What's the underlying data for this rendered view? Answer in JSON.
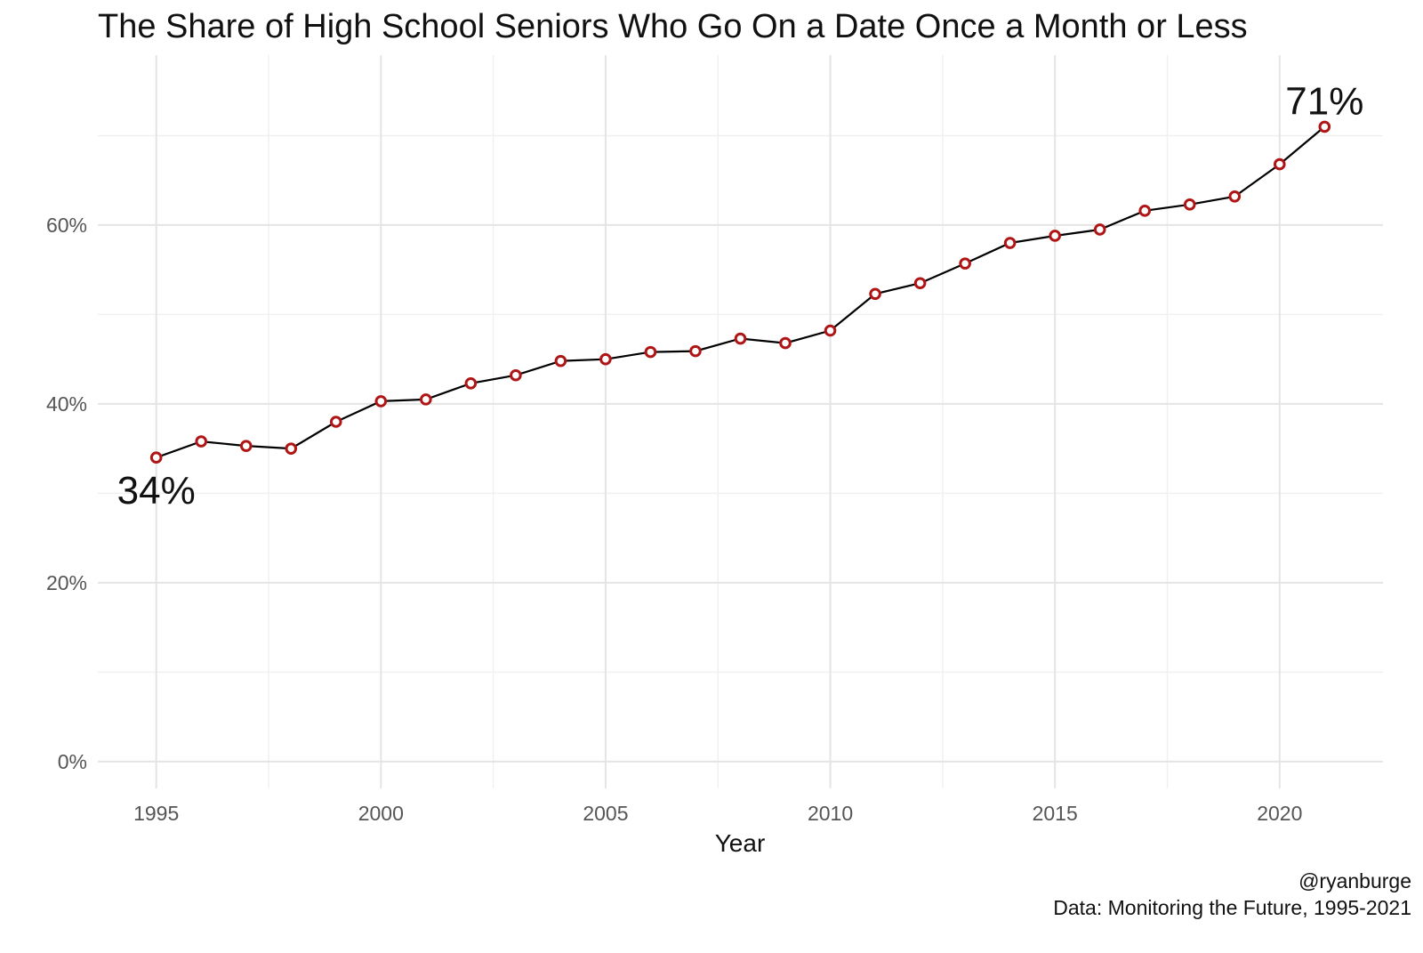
{
  "chart_data": {
    "type": "line",
    "title": "The Share of High School Seniors Who Go On a Date Once a Month or Less",
    "xlabel": "Year",
    "ylabel": "",
    "xlim": [
      1993.7,
      2022.3
    ],
    "ylim": [
      -3,
      79
    ],
    "x_ticks": [
      1995,
      2000,
      2005,
      2010,
      2015,
      2020
    ],
    "x_tick_labels": [
      "1995",
      "2000",
      "2005",
      "2010",
      "2015",
      "2020"
    ],
    "y_ticks": [
      0,
      20,
      40,
      60
    ],
    "y_tick_labels": [
      "0%",
      "20%",
      "40%",
      "60%"
    ],
    "grid": true,
    "x": [
      1995,
      1996,
      1997,
      1998,
      1999,
      2000,
      2001,
      2002,
      2003,
      2004,
      2005,
      2006,
      2007,
      2008,
      2009,
      2010,
      2011,
      2012,
      2013,
      2014,
      2015,
      2016,
      2017,
      2018,
      2019,
      2020,
      2021
    ],
    "series": [
      {
        "values": [
          34.0,
          35.8,
          35.3,
          35.0,
          38.0,
          40.3,
          40.5,
          42.3,
          43.2,
          44.8,
          45.0,
          45.8,
          45.9,
          47.3,
          46.8,
          48.2,
          52.3,
          53.5,
          55.7,
          58.0,
          58.8,
          59.5,
          61.6,
          62.3,
          63.2,
          66.8,
          71.0
        ]
      }
    ],
    "line_color": "#000000",
    "marker_color": "#b01515",
    "annotations": [
      {
        "text": "34%",
        "x": 1995,
        "y": 34.0
      },
      {
        "text": "71%",
        "x": 2021,
        "y": 71.0
      }
    ]
  },
  "caption": {
    "credit": "@ryanburge",
    "source": "Data: Monitoring the Future, 1995-2021"
  }
}
